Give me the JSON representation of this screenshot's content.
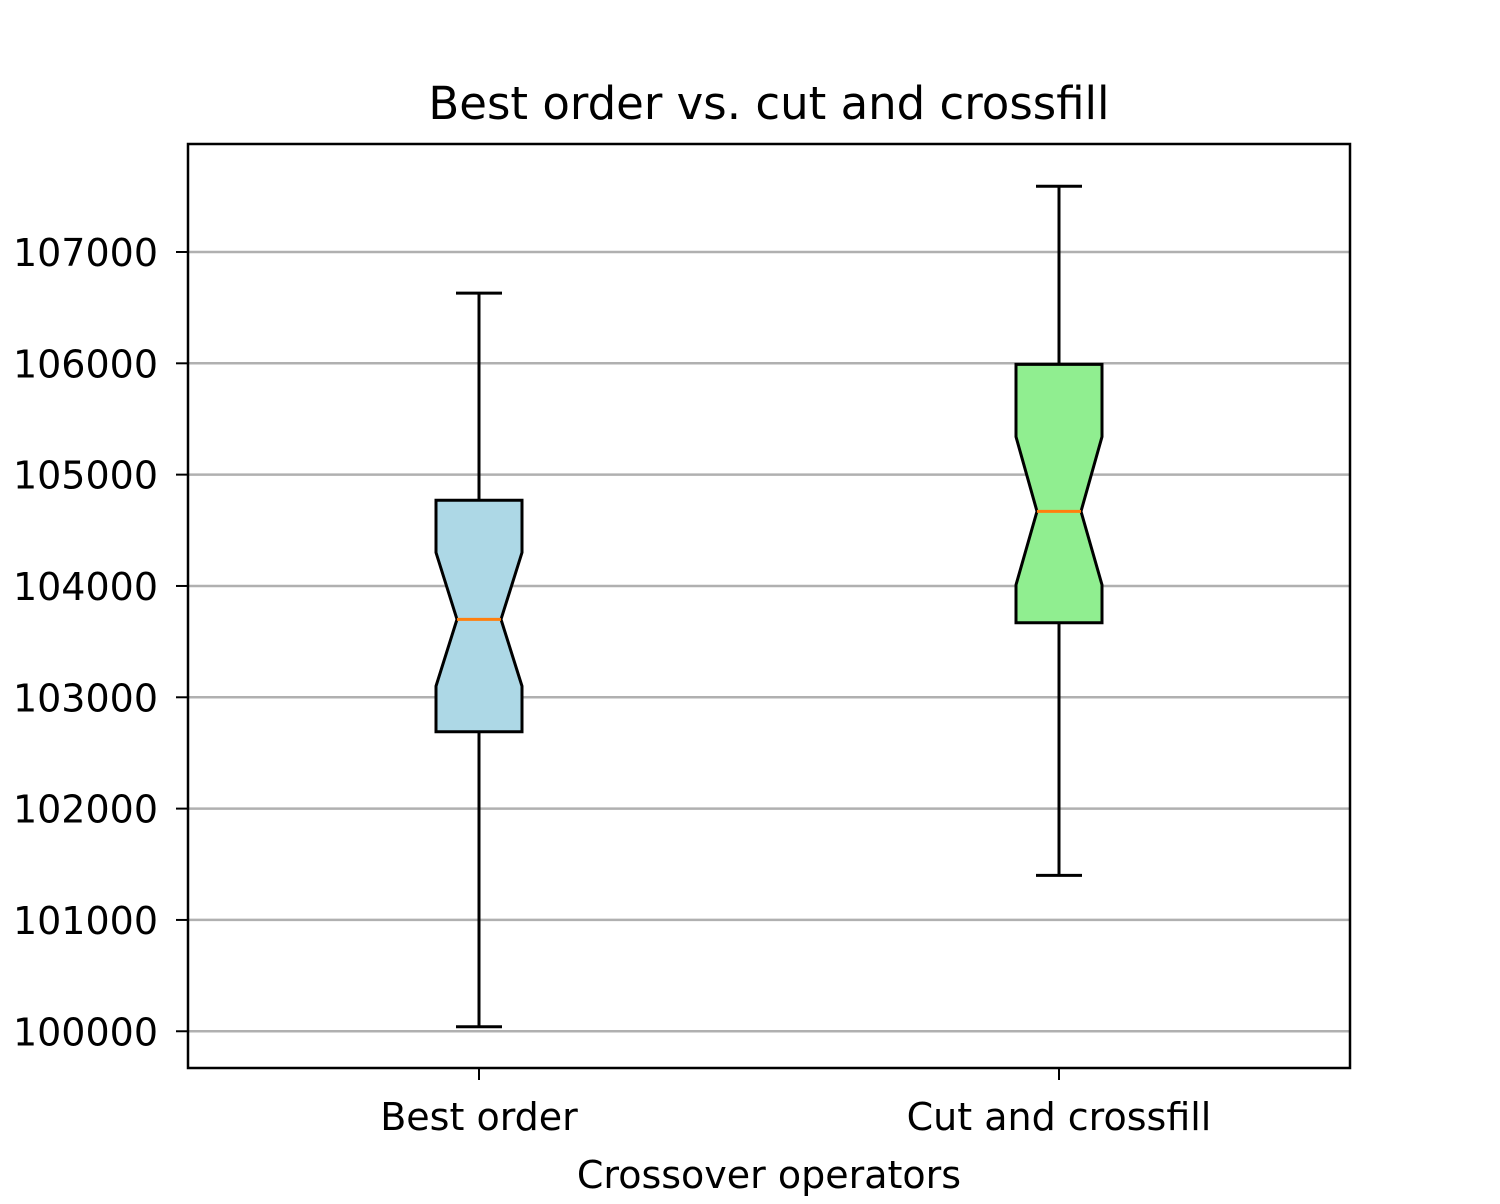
{
  "chart_data": {
    "type": "box",
    "title": "Best order vs. cut and crossfill",
    "xlabel": "Crossover operators",
    "ylabel": "",
    "categories": [
      "Best order",
      "Cut and crossfill"
    ],
    "yticks": [
      100000,
      101000,
      102000,
      103000,
      104000,
      105000,
      106000,
      107000
    ],
    "ytick_labels": [
      "100000",
      "101000",
      "102000",
      "103000",
      "104000",
      "105000",
      "106000",
      "107000"
    ],
    "ylim": [
      99670,
      107970
    ],
    "grid": "horizontal",
    "notched": true,
    "boxes": [
      {
        "category": "Best order",
        "whisker_low": 100040,
        "q1": 102690,
        "notch_low": 103100,
        "median": 103700,
        "notch_high": 104300,
        "q3": 104770,
        "whisker_high": 106630,
        "fill": "#add8e6"
      },
      {
        "category": "Cut and crossfill",
        "whisker_low": 101400,
        "q1": 103670,
        "notch_low": 104010,
        "median": 104670,
        "notch_high": 105340,
        "q3": 105990,
        "whisker_high": 107590,
        "fill": "#90ee90"
      }
    ],
    "colors": {
      "median": "#ff7f0e",
      "grid": "#b0b0b0",
      "axis": "#000000"
    }
  }
}
